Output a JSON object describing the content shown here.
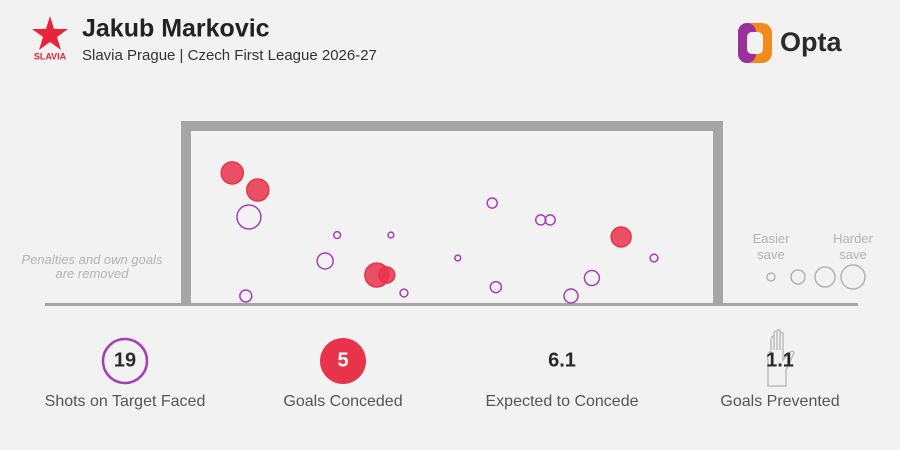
{
  "header": {
    "logo_text": "SLAVIA",
    "title": "Jakub Markovic",
    "subtitle": "Slavia Prague | Czech First League 2026-27",
    "brand": "Opta"
  },
  "chart_data": {
    "type": "scatter",
    "note": "Penalties and own goals are removed",
    "legend_labels": [
      "Easier save",
      "Harder save"
    ],
    "xlim": [
      0,
      100
    ],
    "ylim": [
      0,
      100
    ],
    "series": [
      {
        "color": "#a53fb8",
        "filled": false,
        "x": [
          11.1,
          28.0,
          38.3,
          25.7,
          40.8,
          10.5,
          57.7,
          67.0,
          68.8,
          51.1,
          88.7,
          58.4,
          76.8,
          72.8
        ],
        "values": [
          50.6,
          40.2,
          40.2,
          25.3,
          6.9,
          5.2,
          58.6,
          48.9,
          48.9,
          27.0,
          27.0,
          10.3,
          15.5,
          5.2
        ],
        "sizes": [
          0.85,
          0.07,
          0.05,
          0.38,
          0.09,
          0.21,
          0.15,
          0.15,
          0.15,
          0.05,
          0.09,
          0.18,
          0.33,
          0.29
        ]
      },
      {
        "color": "#e8344a",
        "filled": true,
        "x": [
          7.9,
          12.8,
          35.6,
          37.5,
          82.4
        ],
        "values": [
          75.9,
          66.1,
          17.2,
          17.2,
          39.1
        ],
        "sizes": [
          0.72,
          0.72,
          0.85,
          0.38,
          0.59
        ]
      }
    ]
  },
  "stats": [
    {
      "value": "19",
      "label": "Shots on Target Faced"
    },
    {
      "value": "5",
      "label": "Goals Conceded"
    },
    {
      "value": "6.1",
      "label": "Expected to Concede"
    },
    {
      "value": "1.1",
      "label": "Goals Prevented"
    }
  ]
}
